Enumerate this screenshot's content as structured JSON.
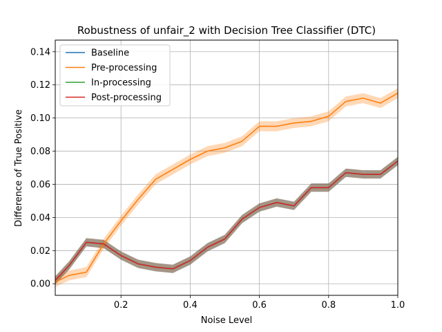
{
  "chart_data": {
    "type": "line",
    "title": "Robustness of unfair_2 with Decision Tree Classifier (DTC)",
    "xlabel": "Noise Level",
    "ylabel": "Difference of True Positive",
    "xlim": [
      0.01,
      1.0
    ],
    "ylim": [
      -0.007,
      0.147
    ],
    "xticks": [
      0.2,
      0.4,
      0.6,
      0.8,
      1.0
    ],
    "xtick_labels": [
      "0.2",
      "0.4",
      "0.6",
      "0.8",
      "1.0"
    ],
    "yticks": [
      0.0,
      0.02,
      0.04,
      0.06,
      0.08,
      0.1,
      0.12,
      0.14
    ],
    "ytick_labels": [
      "0.00",
      "0.02",
      "0.04",
      "0.06",
      "0.08",
      "0.10",
      "0.12",
      "0.14"
    ],
    "grid": true,
    "legend_position": "top-left",
    "x": [
      0.01,
      0.05,
      0.1,
      0.15,
      0.2,
      0.25,
      0.3,
      0.35,
      0.4,
      0.45,
      0.5,
      0.55,
      0.6,
      0.65,
      0.7,
      0.75,
      0.8,
      0.85,
      0.9,
      0.95,
      1.0
    ],
    "series": [
      {
        "name": "Baseline",
        "color": "#1f77b4",
        "values": [
          0.002,
          0.011,
          0.025,
          0.024,
          0.017,
          0.012,
          0.01,
          0.009,
          0.014,
          0.022,
          0.027,
          0.039,
          0.046,
          0.049,
          0.047,
          0.058,
          0.058,
          0.067,
          0.066,
          0.066,
          0.074
        ],
        "band": 0.0025
      },
      {
        "name": "Pre-processing",
        "color": "#ff7f0e",
        "values": [
          0.001,
          0.005,
          0.007,
          0.024,
          0.038,
          0.051,
          0.063,
          0.069,
          0.075,
          0.08,
          0.082,
          0.086,
          0.095,
          0.095,
          0.097,
          0.098,
          0.101,
          0.11,
          0.112,
          0.109,
          0.115
        ],
        "band": 0.003
      },
      {
        "name": "In-processing",
        "color": "#2ca02c",
        "values": [
          0.002,
          0.011,
          0.025,
          0.024,
          0.017,
          0.012,
          0.01,
          0.009,
          0.014,
          0.022,
          0.027,
          0.039,
          0.046,
          0.049,
          0.047,
          0.058,
          0.058,
          0.067,
          0.066,
          0.066,
          0.074
        ],
        "band": 0.0025
      },
      {
        "name": "Post-processing",
        "color": "#d62728",
        "values": [
          0.002,
          0.011,
          0.025,
          0.024,
          0.017,
          0.012,
          0.01,
          0.009,
          0.014,
          0.022,
          0.027,
          0.039,
          0.046,
          0.049,
          0.047,
          0.058,
          0.058,
          0.067,
          0.066,
          0.066,
          0.074
        ],
        "band": 0.0025
      }
    ]
  }
}
